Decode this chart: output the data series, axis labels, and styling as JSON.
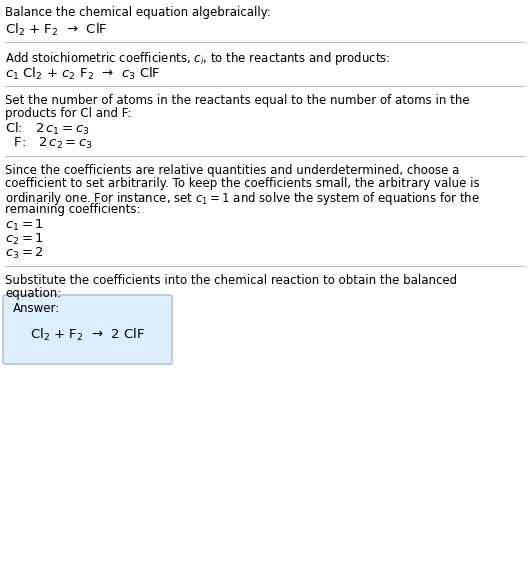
{
  "title": "Balance the chemical equation algebraically:",
  "eq1": "Cl$_2$ + F$_2$  →  ClF",
  "section2_title": "Add stoichiometric coefficients, $c_i$, to the reactants and products:",
  "eq2": "$c_1$ Cl$_2$ + $c_2$ F$_2$  →  $c_3$ ClF",
  "section3_title": "Set the number of atoms in the reactants equal to the number of atoms in the\nproducts for Cl and F:",
  "eq3a": "Cl:   $2\\,c_1 = c_3$",
  "eq3b": "  F:   $2\\,c_2 = c_3$",
  "section4_title": "Since the coefficients are relative quantities and underdetermined, choose a\ncoefficient to set arbitrarily. To keep the coefficients small, the arbitrary value is\nordinarily one. For instance, set $c_1 = 1$ and solve the system of equations for the\nremaining coefficients:",
  "eq4a": "$c_1 = 1$",
  "eq4b": "$c_2 = 1$",
  "eq4c": "$c_3 = 2$",
  "section5_title": "Substitute the coefficients into the chemical reaction to obtain the balanced\nequation:",
  "answer_label": "Answer:",
  "answer_eq": "Cl$_2$ + F$_2$  →  2 ClF",
  "bg_color": "#ffffff",
  "text_color": "#000000",
  "answer_box_facecolor": "#ddeeff",
  "answer_box_edgecolor": "#aabbcc",
  "line_color": "#bbbbbb",
  "fs_body": 8.5,
  "fs_eq": 9.5
}
